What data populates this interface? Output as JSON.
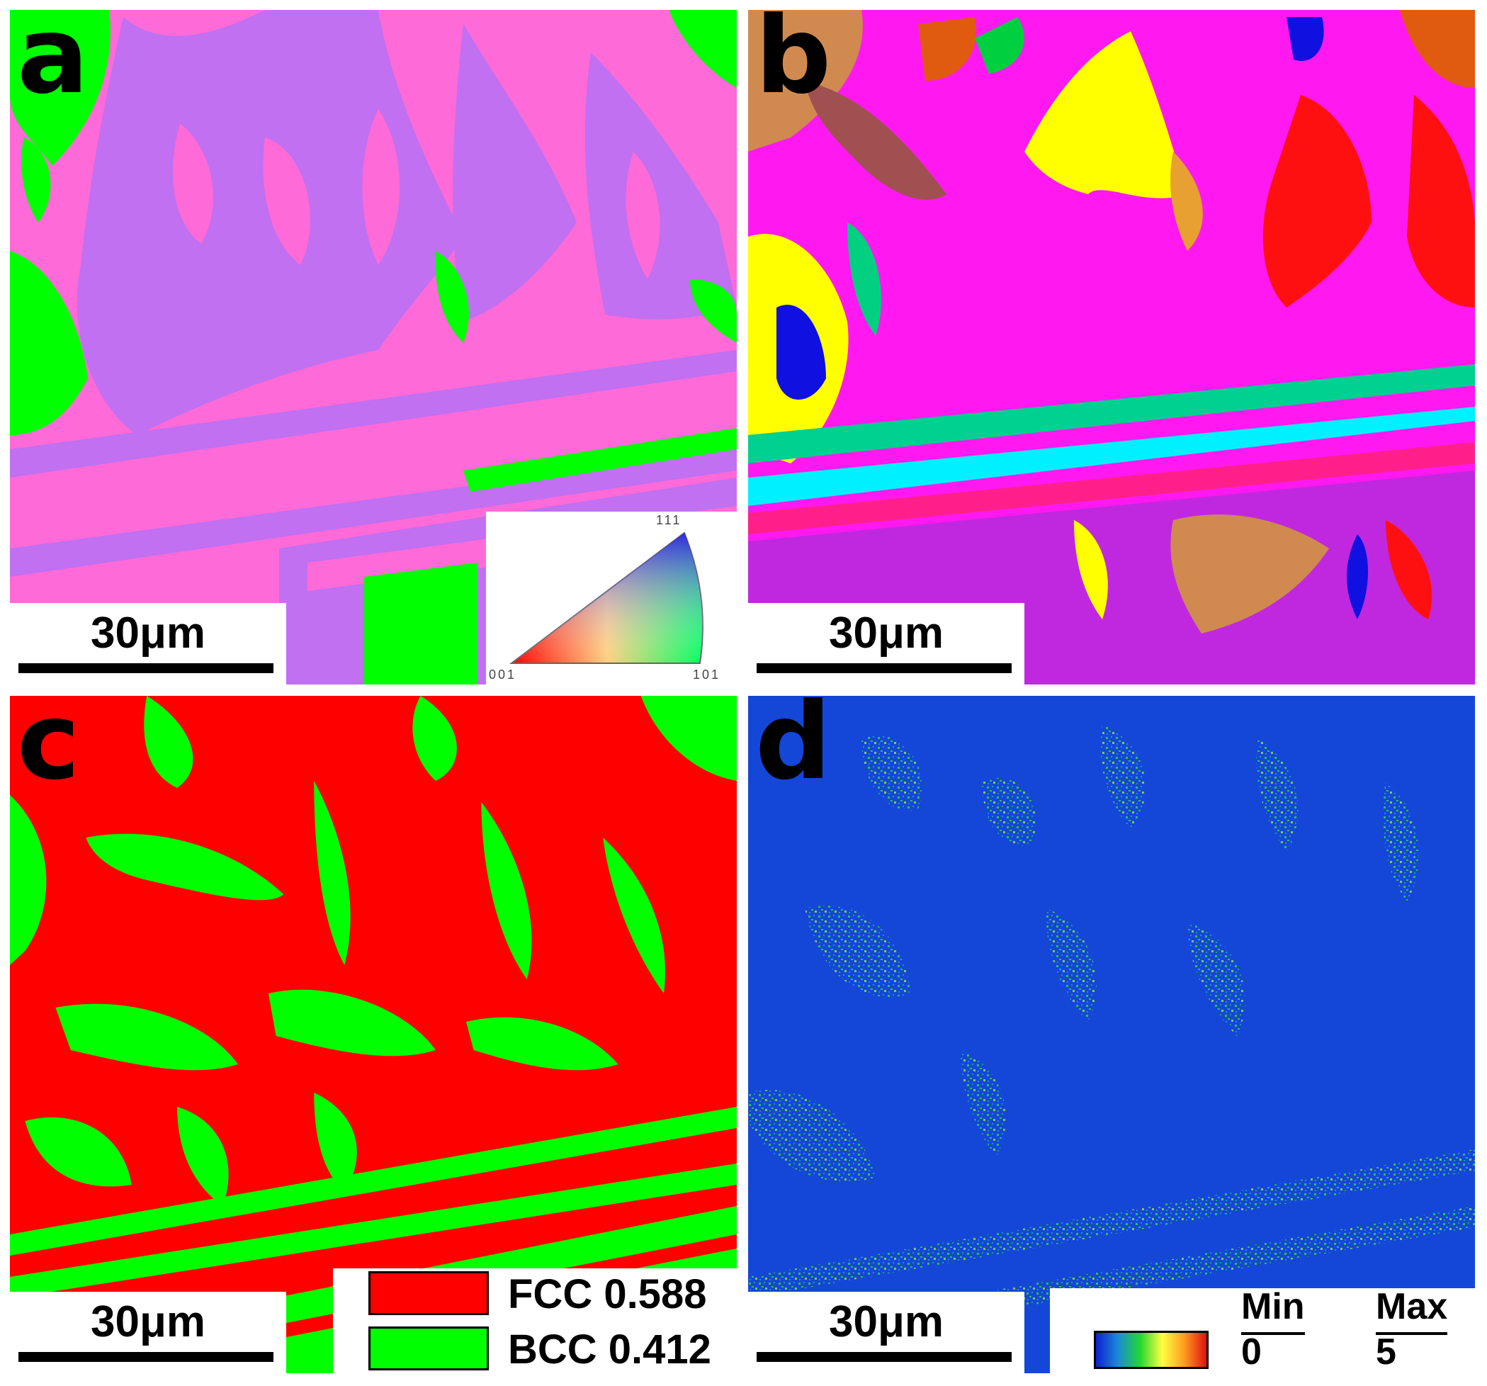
{
  "panels": [
    {
      "id": "a",
      "letter": "a",
      "type": "IPF orientation map",
      "scale_bar": "30μm"
    },
    {
      "id": "b",
      "letter": "b",
      "type": "grain map",
      "scale_bar": "30μm"
    },
    {
      "id": "c",
      "letter": "c",
      "type": "phase map",
      "scale_bar": "30μm"
    },
    {
      "id": "d",
      "letter": "d",
      "type": "KAM map",
      "scale_bar": "30μm"
    }
  ],
  "ipf_legend": {
    "corner_top": "111",
    "corner_left": "001",
    "corner_right": "101"
  },
  "phase_legend": [
    {
      "label": "FCC 0.588",
      "color": "#ff0000"
    },
    {
      "label": "BCC 0.412",
      "color": "#00ff00"
    }
  ],
  "kam_legend": {
    "min_label": "Min",
    "max_label": "Max",
    "min_value": "0",
    "max_value": "5"
  },
  "colors": {
    "ipf_fcc": "#ff6ad9",
    "ipf_bcc": "#c070f0",
    "ipf_green": "#00ff00",
    "phase_fcc": "#ff0000",
    "phase_bcc": "#00ff00",
    "kam_low": "#1447d8",
    "kam_high": "#22d830"
  }
}
